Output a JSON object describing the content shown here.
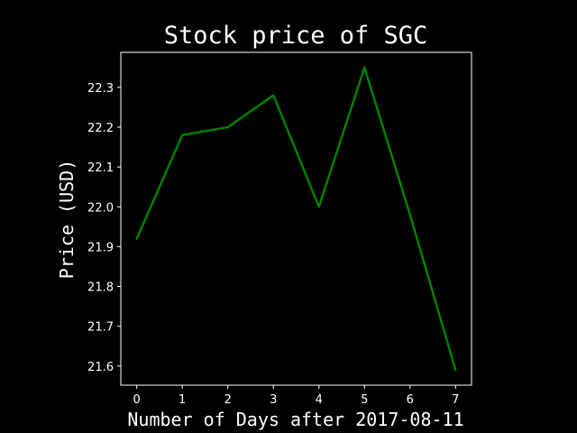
{
  "chart_data": {
    "type": "line",
    "title": "Stock price of SGC",
    "xlabel": "Number of Days after 2017-08-11",
    "ylabel": "Price (USD)",
    "x": [
      0,
      1,
      2,
      3,
      4,
      5,
      6,
      7
    ],
    "series": [
      {
        "values": [
          21.92,
          22.18,
          22.2,
          22.28,
          22.0,
          22.35,
          21.98,
          21.59
        ],
        "color": "#008000"
      }
    ],
    "xticks": [
      "0",
      "1",
      "2",
      "3",
      "4",
      "5",
      "6",
      "7"
    ],
    "yticks": [
      "21.6",
      "21.7",
      "21.8",
      "21.9",
      "22.0",
      "22.1",
      "22.2",
      "22.3"
    ],
    "ytick_values": [
      21.6,
      21.7,
      21.8,
      21.9,
      22.0,
      22.1,
      22.2,
      22.3
    ],
    "xlim": [
      -0.35,
      7.35
    ],
    "ylim": [
      21.552,
      22.388
    ],
    "grid": false,
    "background_color": "#000000",
    "foreground_color": "#ffffff"
  }
}
